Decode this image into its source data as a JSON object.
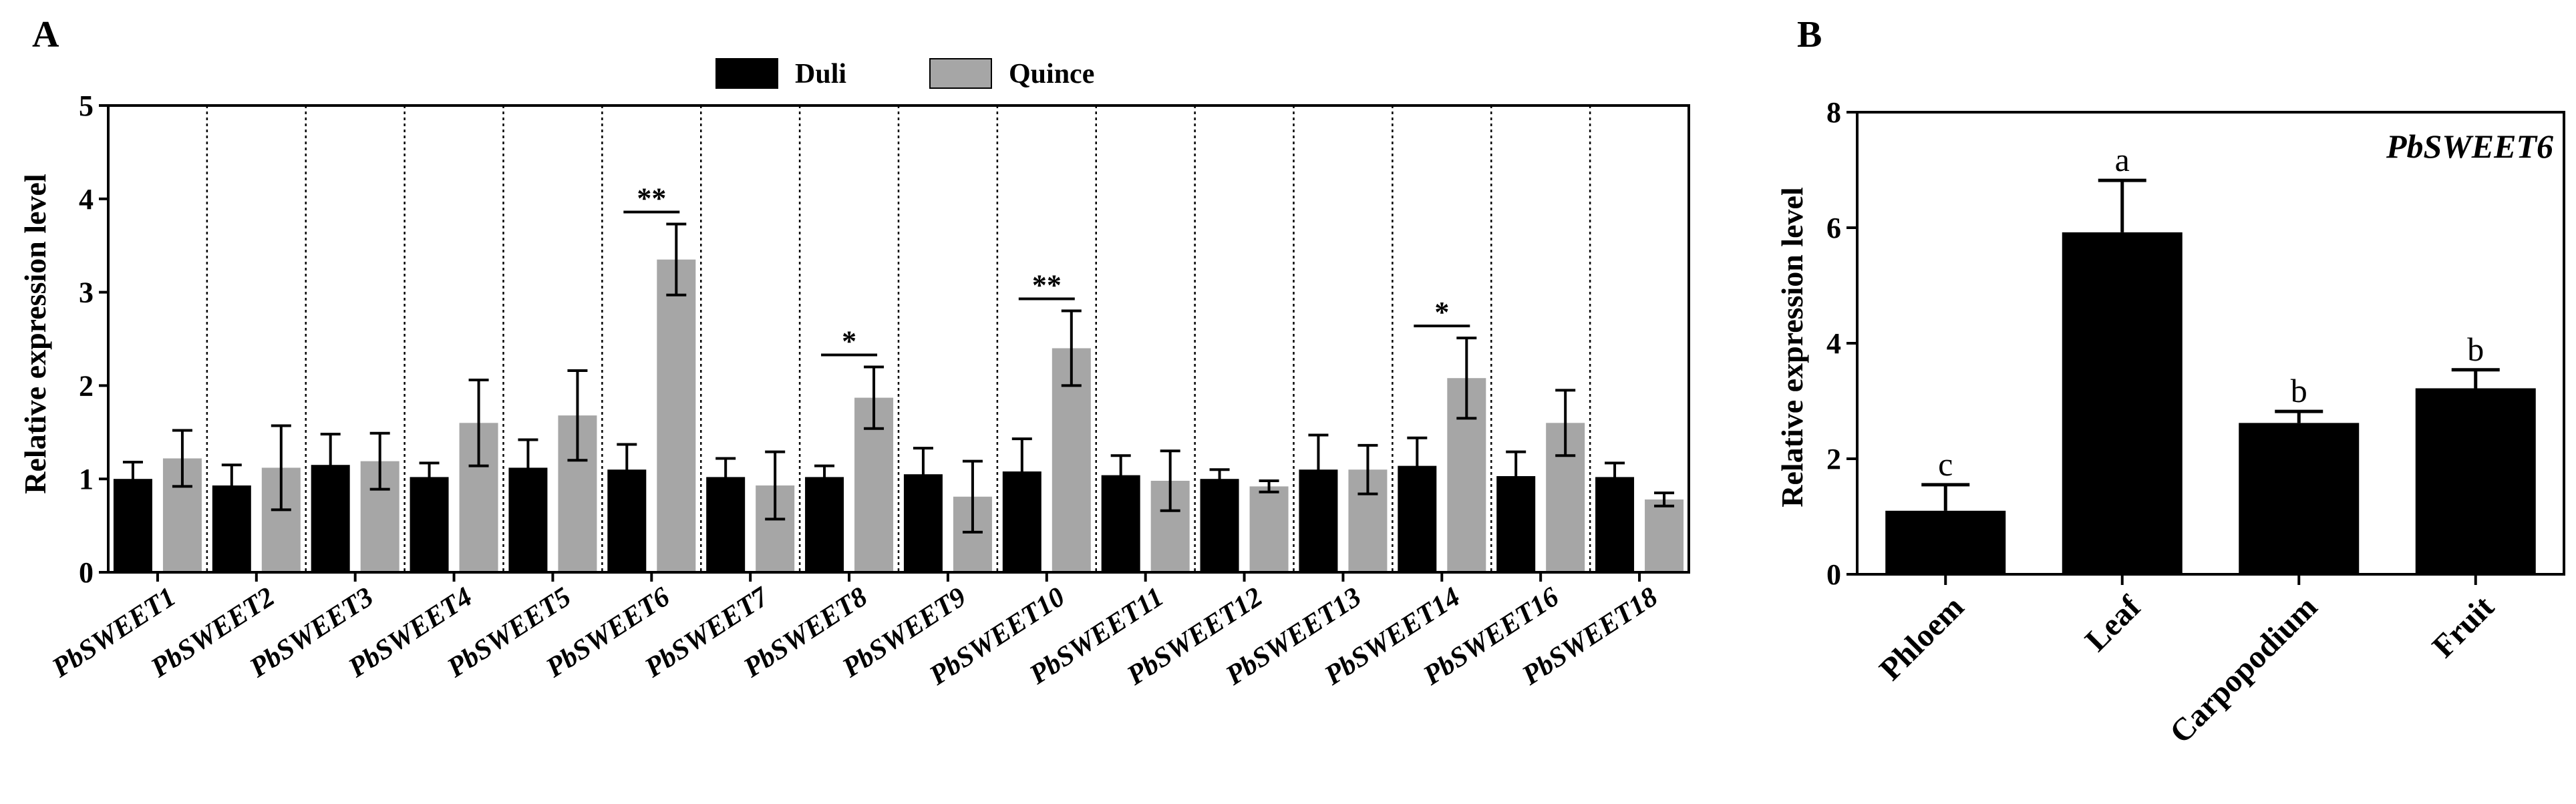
{
  "chart_data": [
    {
      "panel": "A",
      "type": "bar",
      "title": "",
      "xlabel": "",
      "ylabel": "Relative expression level",
      "ylim": [
        0,
        5
      ],
      "yticks": [
        "0",
        "1",
        "2",
        "3",
        "4",
        "5"
      ],
      "categories": [
        "PbSWEET1",
        "PbSWEET2",
        "PbSWEET3",
        "PbSWEET4",
        "PbSWEET5",
        "PbSWEET6",
        "PbSWEET7",
        "PbSWEET8",
        "PbSWEET9",
        "PbSWEET10",
        "PbSWEET11",
        "PbSWEET12",
        "PbSWEET13",
        "PbSWEET14",
        "PbSWEET16",
        "PbSWEET18"
      ],
      "legend_position": "top-center",
      "series": [
        {
          "name": "Duli",
          "color": "#000000",
          "values": [
            1.0,
            0.93,
            1.15,
            1.02,
            1.12,
            1.1,
            1.02,
            1.02,
            1.05,
            1.08,
            1.04,
            1.0,
            1.1,
            1.14,
            1.03,
            1.02
          ],
          "errors": [
            0.18,
            0.22,
            0.33,
            0.15,
            0.3,
            0.27,
            0.2,
            0.12,
            0.28,
            0.35,
            0.21,
            0.1,
            0.37,
            0.3,
            0.26,
            0.15
          ]
        },
        {
          "name": "Quince",
          "color": "#a6a6a6",
          "values": [
            1.22,
            1.12,
            1.19,
            1.6,
            1.68,
            3.35,
            0.93,
            1.87,
            0.81,
            2.4,
            0.98,
            0.92,
            1.1,
            2.08,
            1.6,
            0.78
          ],
          "errors": [
            0.3,
            0.45,
            0.3,
            0.46,
            0.48,
            0.38,
            0.36,
            0.33,
            0.38,
            0.4,
            0.32,
            0.06,
            0.26,
            0.43,
            0.35,
            0.07
          ]
        }
      ],
      "annotations": [
        {
          "category": "PbSWEET6",
          "text": "**"
        },
        {
          "category": "PbSWEET8",
          "text": "*"
        },
        {
          "category": "PbSWEET10",
          "text": "**"
        },
        {
          "category": "PbSWEET14",
          "text": "*"
        }
      ]
    },
    {
      "panel": "B",
      "type": "bar",
      "title": "PbSWEET6",
      "xlabel": "",
      "ylabel": "Relative expression level",
      "ylim": [
        0,
        8
      ],
      "yticks": [
        "0",
        "2",
        "4",
        "6",
        "8"
      ],
      "categories": [
        "Phloem",
        "Leaf",
        "Carpopodium",
        "Fruit"
      ],
      "series": [
        {
          "name": "PbSWEET6",
          "color": "#000000",
          "values": [
            1.1,
            5.92,
            2.62,
            3.22
          ],
          "errors": [
            0.45,
            0.9,
            0.2,
            0.32
          ]
        }
      ],
      "letters": [
        "c",
        "a",
        "b",
        "b"
      ]
    }
  ]
}
